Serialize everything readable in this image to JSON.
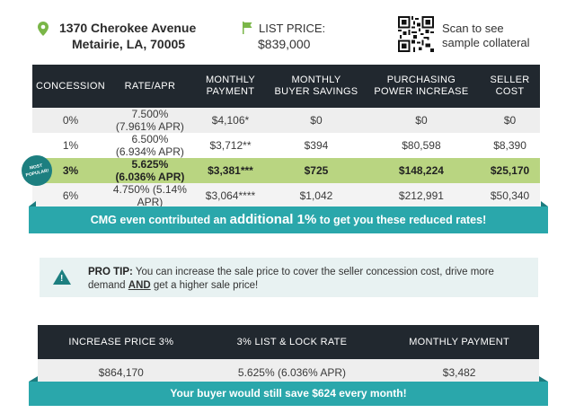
{
  "property": {
    "address_line1": "1370 Cherokee Avenue",
    "address_line2": "Metairie, LA, 70005",
    "list_price_label": "LIST PRICE:",
    "list_price": "$839,000",
    "scan_line1": "Scan to see",
    "scan_line2": "sample collateral"
  },
  "concession_table": {
    "headers": [
      "CONCESSION",
      "RATE/APR",
      "MONTHLY PAYMENT",
      "MONTHLY BUYER SAVINGS",
      "PURCHASING POWER INCREASE",
      "SELLER COST"
    ],
    "rows": [
      [
        "0%",
        "7.500% (7.961% APR)",
        "$4,106*",
        "$0",
        "$0",
        "$0"
      ],
      [
        "1%",
        "6.500% (6.934% APR)",
        "$3,712**",
        "$394",
        "$80,598",
        "$8,390"
      ],
      [
        "3%",
        "5.625% (6.036% APR)",
        "$3,381***",
        "$725",
        "$148,224",
        "$25,170"
      ],
      [
        "6%",
        "4.750% (5.14% APR)",
        "$3,064****",
        "$1,042",
        "$212,991",
        "$50,340"
      ]
    ],
    "badge_line1": "MOST",
    "badge_line2": "POPULAR!"
  },
  "banner1": {
    "prefix": "CMG even contributed an ",
    "emphasis": "additional 1%",
    "suffix": " to get you these reduced rates!"
  },
  "protip": {
    "label": "PRO TIP:",
    "text1": " You can increase the sale price to cover the seller concession cost, drive more demand ",
    "and_word": "AND",
    "text2": " get a higher sale price!"
  },
  "price_table": {
    "headers": [
      "INCREASE PRICE 3%",
      "3% LIST & LOCK RATE",
      "MONTHLY PAYMENT"
    ],
    "row": [
      "$864,170",
      "5.625% (6.036% APR)",
      "$3,482"
    ]
  },
  "banner2": {
    "text": "Your buyer would still save $624 every month!"
  },
  "colors": {
    "header_dark": "#21282f",
    "teal": "#2aa7ab",
    "highlight_green": "#b9d581",
    "icon_green": "#7ab648"
  }
}
